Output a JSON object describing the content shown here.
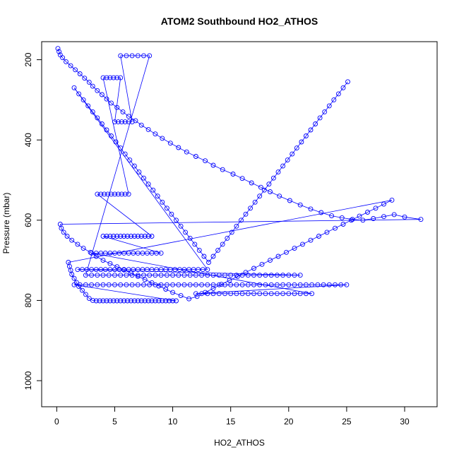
{
  "chart_data": {
    "type": "scatter",
    "title": "ATOM2 Southbound HO2_ATHOS",
    "xlabel": "HO2_ATHOS",
    "ylabel": "Pressure (mbar)",
    "xlim": [
      -1.3,
      32.8
    ],
    "ylim": [
      1065,
      155
    ],
    "y_reversed": true,
    "grid": false,
    "marker": "open-circle",
    "connected_by_lines": true,
    "series_color": "#0000ff",
    "xticks": [
      0,
      5,
      10,
      15,
      20,
      25,
      30
    ],
    "yticks": [
      200,
      400,
      600,
      800,
      1000
    ],
    "series": [
      {
        "x": [
          0.1,
          0.2,
          0.3,
          0.5,
          0.8,
          1.2,
          1.6,
          2.0,
          2.4,
          2.8,
          3.1,
          3.5,
          3.9,
          4.3,
          4.7,
          5.2,
          5.7,
          6.2,
          6.8,
          7.3,
          7.9,
          8.5,
          9.1,
          9.8,
          10.5,
          11.2,
          12.0,
          12.8,
          13.5,
          14.3,
          15.2,
          16.0,
          16.8,
          17.6,
          18.4,
          19.2,
          20.1,
          21.0,
          21.9,
          22.8,
          23.7,
          24.6,
          25.5,
          26.4,
          27.3,
          28.2,
          29.1,
          30.0,
          31.4,
          0.3,
          0.4,
          0.6,
          0.9,
          1.3,
          1.8,
          2.3,
          2.9,
          3.4,
          4.0,
          4.6,
          5.2,
          5.8,
          6.4,
          7.0,
          7.6,
          8.2,
          8.8,
          9.4,
          10.0,
          10.7,
          11.4,
          12.1,
          12.8,
          13.5,
          14.2,
          14.9,
          15.6,
          16.3,
          17.0,
          17.7,
          18.4,
          19.1,
          19.8,
          20.5,
          21.2,
          21.9,
          22.6,
          23.3,
          24.0,
          24.7,
          25.4,
          26.1,
          26.8,
          27.5,
          28.2,
          28.9,
          1.0,
          1.1,
          1.2,
          1.3,
          1.5,
          1.7,
          1.9,
          2.2,
          2.5,
          2.8,
          3.1,
          3.4,
          3.7,
          4.0,
          4.3,
          4.6,
          4.9,
          5.2,
          5.5,
          5.8,
          6.1,
          6.4,
          6.7,
          7.0,
          7.3,
          7.6,
          7.9,
          8.2,
          8.5,
          8.8,
          9.1,
          9.4,
          9.7,
          10.0,
          10.3,
          1.5,
          2.0,
          2.5,
          3.0,
          3.5,
          4.0,
          4.5,
          5.0,
          5.5,
          6.0,
          6.5,
          7.0,
          7.5,
          8.0,
          8.5,
          9.0,
          9.5,
          10.0,
          10.5,
          11.0,
          11.5,
          12.0,
          12.5,
          13.0,
          13.5,
          14.0,
          14.5,
          15.0,
          15.5,
          16.0,
          16.5,
          17.0,
          17.5,
          18.0,
          18.5,
          19.0,
          19.5,
          20.0,
          20.5,
          21.0,
          21.5,
          22.0,
          22.5,
          23.0,
          23.5,
          24.0,
          24.5,
          25.0,
          12.0,
          12.5,
          13.0,
          13.5,
          14.0,
          14.5,
          15.0,
          15.5,
          16.0,
          16.5,
          17.0,
          17.5,
          18.0,
          18.5,
          19.0,
          19.5,
          20.0,
          20.5,
          21.0,
          21.5,
          22.0,
          3.0,
          3.4,
          3.8,
          4.2,
          4.6,
          5.0,
          5.4,
          5.8,
          6.2,
          6.6,
          7.0,
          7.4,
          7.8,
          8.2,
          8.6,
          9.0,
          4.0,
          4.3,
          4.6,
          4.9,
          5.2,
          5.5,
          5.8,
          6.1,
          6.4,
          6.7,
          7.0,
          7.3,
          7.6,
          7.9,
          8.2,
          3.5,
          3.8,
          4.1,
          4.4,
          4.7,
          5.0,
          5.3,
          5.6,
          5.9,
          6.2,
          4.0,
          4.3,
          4.6,
          4.9,
          5.2,
          5.5,
          5.0,
          5.3,
          5.6,
          5.9,
          6.2,
          6.5,
          5.5,
          6.0,
          6.5,
          7.0,
          7.5,
          8.0,
          2.5,
          3.0,
          3.5,
          4.0,
          4.5,
          5.0,
          5.5,
          6.0,
          6.5,
          7.0,
          7.5,
          8.0,
          8.5,
          9.0,
          9.5,
          10.0,
          10.5,
          11.0,
          11.5,
          12.0,
          12.5,
          13.0,
          13.5,
          14.0,
          14.5,
          15.0,
          15.5,
          16.0,
          16.5,
          17.0,
          17.5,
          18.0,
          18.5,
          19.0,
          19.5,
          20.0,
          20.5,
          21.0,
          1.8,
          2.2,
          2.6,
          3.0,
          3.4,
          3.8,
          4.2,
          4.6,
          5.0,
          5.4,
          5.8,
          6.2,
          6.6,
          7.0,
          7.4,
          7.8,
          8.2,
          8.6,
          9.0,
          9.4,
          9.8,
          10.2,
          10.6,
          11.0,
          11.4,
          11.8,
          12.2,
          12.6,
          13.0,
          1.5,
          1.9,
          2.3,
          2.7,
          3.1,
          3.5,
          3.9,
          4.3,
          4.7,
          5.1,
          5.5,
          5.9,
          6.3,
          6.7,
          7.1,
          7.5,
          7.9,
          8.3,
          8.7,
          9.1,
          9.5,
          9.9,
          10.3,
          10.7,
          11.1,
          11.5,
          11.9,
          12.3,
          12.7,
          13.1,
          13.5,
          13.9,
          14.3,
          14.7,
          15.1,
          15.5,
          15.9,
          16.3,
          16.7,
          17.1,
          17.5,
          17.9,
          18.3,
          18.7,
          19.1,
          19.5,
          19.9,
          20.3,
          20.7,
          21.1,
          21.5,
          21.9,
          22.3,
          22.7,
          23.1,
          23.5,
          23.9,
          24.3,
          24.7,
          25.1
        ],
        "y": [
          172,
          180,
          188,
          195,
          205,
          215,
          225,
          235,
          246,
          256,
          266,
          277,
          287,
          298,
          308,
          319,
          330,
          341,
          352,
          363,
          374,
          385,
          396,
          408,
          419,
          430,
          441,
          452,
          463,
          474,
          485,
          496,
          507,
          518,
          529,
          540,
          551,
          562,
          572,
          581,
          589,
          594,
          598,
          600,
          596,
          591,
          586,
          592,
          598,
          610,
          620,
          630,
          640,
          650,
          660,
          670,
          680,
          690,
          700,
          708,
          716,
          724,
          732,
          740,
          748,
          756,
          764,
          772,
          780,
          788,
          796,
          790,
          780,
          770,
          760,
          750,
          740,
          730,
          720,
          710,
          700,
          690,
          680,
          670,
          660,
          650,
          640,
          630,
          620,
          610,
          600,
          590,
          580,
          570,
          560,
          550,
          705,
          715,
          725,
          735,
          745,
          755,
          765,
          775,
          785,
          795,
          800,
          801,
          801,
          801,
          801,
          801,
          801,
          801,
          801,
          801,
          801,
          801,
          801,
          801,
          801,
          801,
          801,
          801,
          801,
          801,
          801,
          801,
          801,
          801,
          801,
          761,
          761,
          761,
          761,
          761,
          761,
          761,
          761,
          761,
          761,
          761,
          761,
          761,
          761,
          761,
          761,
          761,
          761,
          761,
          761,
          761,
          761,
          761,
          761,
          761,
          761,
          761,
          761,
          761,
          761,
          761,
          761,
          761,
          761,
          761,
          761,
          761,
          761,
          761,
          761,
          761,
          761,
          761,
          761,
          761,
          761,
          761,
          761,
          783,
          783,
          783,
          783,
          783,
          783,
          783,
          783,
          783,
          783,
          783,
          783,
          783,
          783,
          783,
          783,
          783,
          783,
          783,
          783,
          783,
          682,
          682,
          682,
          682,
          682,
          682,
          682,
          682,
          682,
          682,
          682,
          682,
          682,
          682,
          682,
          682,
          640,
          640,
          640,
          640,
          640,
          640,
          640,
          640,
          640,
          640,
          640,
          640,
          640,
          640,
          640,
          535,
          535,
          535,
          535,
          535,
          535,
          535,
          535,
          535,
          535,
          245,
          245,
          245,
          245,
          245,
          245,
          355,
          355,
          355,
          355,
          355,
          355,
          190,
          190,
          190,
          190,
          190,
          190,
          737,
          737,
          737,
          737,
          737,
          737,
          737,
          737,
          737,
          737,
          737,
          737,
          737,
          737,
          737,
          737,
          737,
          737,
          737,
          737,
          737,
          737,
          737,
          737,
          737,
          737,
          737,
          737,
          737,
          737,
          737,
          737,
          737,
          737,
          737,
          737,
          737,
          737,
          723,
          723,
          723,
          723,
          723,
          723,
          723,
          723,
          723,
          723,
          723,
          723,
          723,
          723,
          723,
          723,
          723,
          723,
          723,
          723,
          723,
          723,
          723,
          723,
          723,
          723,
          723,
          723,
          723,
          270,
          285,
          300,
          315,
          330,
          345,
          360,
          375,
          390,
          405,
          420,
          435,
          450,
          465,
          480,
          495,
          510,
          525,
          540,
          555,
          570,
          585,
          600,
          615,
          630,
          645,
          660,
          675,
          690,
          705,
          690,
          675,
          660,
          645,
          630,
          615,
          600,
          585,
          570,
          555,
          540,
          525,
          510,
          495,
          480,
          465,
          450,
          435,
          420,
          405,
          390,
          375,
          360,
          345,
          330,
          315,
          300,
          285,
          270,
          255
        ]
      }
    ]
  }
}
